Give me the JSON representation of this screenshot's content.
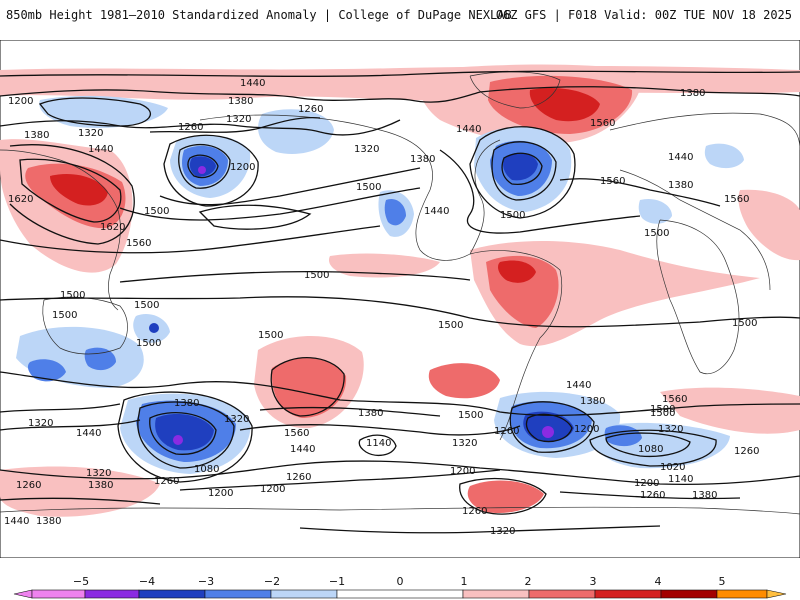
{
  "header": {
    "title": "850mb Height 1981–2010 Standardized Anomaly | College of DuPage NEXLAB",
    "run": "06Z GFS | F018 Valid: 00Z TUE NOV 18 2025"
  },
  "colors": {
    "neg5": "#ee82ee",
    "neg4": "#8a2be2",
    "neg3": "#1f3fbf",
    "neg2": "#4f7fe8",
    "neg1": "#bcd6f7",
    "zero": "#ffffff",
    "pos1": "#f9c0c0",
    "pos2": "#ee6b6b",
    "pos3": "#d42020",
    "pos4": "#a30000",
    "pos5": "#ff8c00",
    "pos6": "#ffbf40",
    "contour": "#111111",
    "coast": "#333333"
  },
  "legend": {
    "ticks": [
      "−5",
      "−4",
      "−3",
      "−2",
      "−1",
      "0",
      "1",
      "2",
      "3",
      "4",
      "5"
    ]
  },
  "contour_labels": [
    "1440",
    "1380",
    "1200",
    "1320",
    "1260",
    "1260",
    "1320",
    "1380",
    "1200",
    "1500",
    "1560",
    "1380",
    "1440",
    "1560",
    "1380",
    "1320",
    "1620",
    "1440",
    "1560",
    "1620",
    "1500",
    "1560",
    "1500",
    "1440",
    "1500",
    "1500",
    "1380",
    "1440",
    "1500",
    "1500",
    "1500",
    "1500",
    "1500",
    "1500",
    "1500",
    "1500",
    "1320",
    "1440",
    "1380",
    "1080",
    "1320",
    "1380",
    "1140",
    "1500",
    "1560",
    "1440",
    "1320",
    "1560",
    "1440",
    "1380",
    "1500",
    "1320",
    "1200",
    "1080",
    "1020",
    "1140",
    "1200",
    "1260",
    "1380",
    "1260",
    "1260",
    "1200",
    "1200",
    "1260",
    "1380",
    "1320",
    "1440",
    "1380",
    "1260",
    "1260",
    "1200",
    "1320",
    "1260"
  ]
}
